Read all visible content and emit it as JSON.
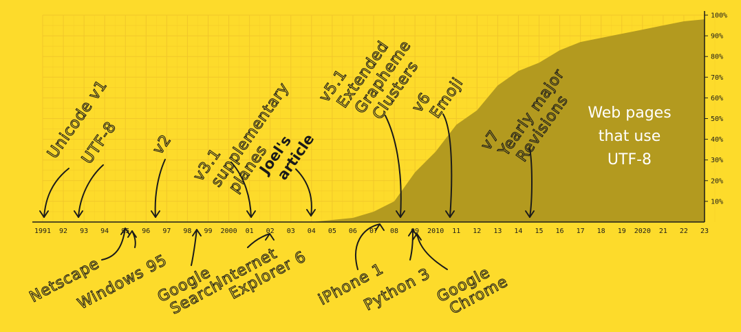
{
  "chart_data": {
    "type": "area",
    "x": [
      1991,
      1992,
      1993,
      1994,
      1995,
      1996,
      1997,
      1998,
      1999,
      2000,
      2001,
      2002,
      2003,
      2004,
      2005,
      2006,
      2007,
      2008,
      2009,
      2010,
      2011,
      2012,
      2013,
      2014,
      2015,
      2016,
      2017,
      2018,
      2019,
      2020,
      2021,
      2022,
      2023
    ],
    "x_tick_labels": [
      "1991",
      "92",
      "93",
      "94",
      "95",
      "96",
      "97",
      "98",
      "99",
      "2000",
      "01",
      "02",
      "03",
      "04",
      "05",
      "06",
      "07",
      "08",
      "09",
      "2010",
      "11",
      "12",
      "13",
      "14",
      "15",
      "16",
      "17",
      "18",
      "19",
      "2020",
      "21",
      "22",
      "23"
    ],
    "series": [
      {
        "name": "Web pages that use UTF-8",
        "values": [
          0,
          0,
          0,
          0,
          0,
          0,
          0,
          0,
          0,
          0,
          0,
          0,
          0,
          0,
          1,
          2,
          5,
          10,
          24,
          34,
          47,
          54,
          66,
          73,
          77,
          83,
          87,
          89,
          91,
          93,
          95,
          97,
          98
        ]
      }
    ],
    "series_label": "Web pages that use UTF-8",
    "ylim": [
      0,
      100
    ],
    "y_tick_labels": [
      "10%",
      "20%",
      "30%",
      "40%",
      "50%",
      "60%",
      "70%",
      "80%",
      "90%",
      "100%"
    ],
    "grid": true,
    "colors": {
      "background": "#fddb2b",
      "area": "#b39a1f",
      "grid": "#f1c72a",
      "ink": "#1a1a1a",
      "label": "#ffffff"
    },
    "annotations_above": [
      {
        "lines": [
          "Unicode v1"
        ],
        "x": 1991.0,
        "bold": false
      },
      {
        "lines": [
          "UTF-8"
        ],
        "x": 1992.7,
        "bold": false
      },
      {
        "lines": [
          "v2"
        ],
        "x": 1996.7,
        "bold": false
      },
      {
        "lines": [
          "v3.1",
          "supplementary",
          "planes"
        ],
        "x": 2001.0,
        "bold": false
      },
      {
        "lines": [
          "Joel's",
          "article"
        ],
        "x": 2003.9,
        "bold": true
      },
      {
        "lines": [
          "v5.1",
          "Extended",
          "Grapheme",
          "Clusters"
        ],
        "x": 2008.4,
        "bold": false
      },
      {
        "lines": [
          "v6",
          "Emoji"
        ],
        "x": 2010.7,
        "bold": false
      },
      {
        "lines": [
          "v7",
          "Yearly major",
          "Revisions"
        ],
        "x": 2014.3,
        "bold": false
      }
    ],
    "annotations_below": [
      {
        "lines": [
          "Netscape"
        ],
        "x": 1994.6
      },
      {
        "lines": [
          "Windows 95"
        ],
        "x": 1995.5
      },
      {
        "lines": [
          "Google",
          "Search"
        ],
        "x": 1998.1
      },
      {
        "lines": [
          "Internet",
          "Explorer 6"
        ],
        "x": 2001.6
      },
      {
        "lines": [
          "iPhone 1"
        ],
        "x": 2007.5
      },
      {
        "lines": [
          "Python 3"
        ],
        "x": 2008.9
      },
      {
        "lines": [
          "Google",
          "Chrome"
        ],
        "x": 2009.1
      }
    ]
  }
}
